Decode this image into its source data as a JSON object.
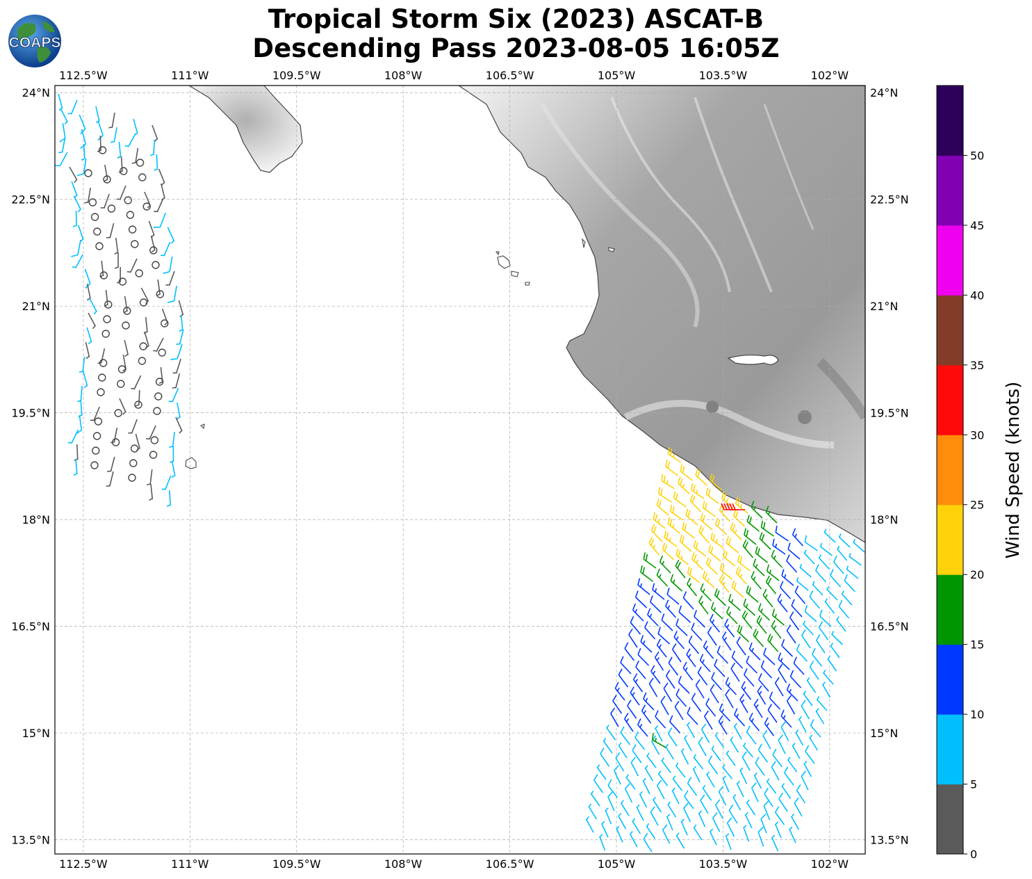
{
  "title": {
    "line1": "Tropical Storm Six (2023) ASCAT-B",
    "line2": "Descending Pass 2023-08-05 16:05Z"
  },
  "logo": {
    "text": "COAPS",
    "icon": "globe-logo"
  },
  "axes": {
    "lon_ticks": [
      "112.5°W",
      "111°W",
      "109.5°W",
      "108°W",
      "106.5°W",
      "105°W",
      "103.5°W",
      "102°W"
    ],
    "lat_ticks": [
      "24°N",
      "22.5°N",
      "21°N",
      "19.5°N",
      "18°N",
      "16.5°N",
      "15°N",
      "13.5°N"
    ],
    "lon_range": [
      -112.9,
      -101.5
    ],
    "lat_range": [
      13.3,
      24.1
    ]
  },
  "colorbar": {
    "label": "Wind Speed (knots)",
    "ticks": [
      "0",
      "5",
      "10",
      "15",
      "20",
      "25",
      "30",
      "35",
      "40",
      "45",
      "50"
    ],
    "bins": [
      {
        "min": 0,
        "max": 5,
        "color": "#5a5a5a"
      },
      {
        "min": 5,
        "max": 10,
        "color": "#00bfff"
      },
      {
        "min": 10,
        "max": 15,
        "color": "#0038ff"
      },
      {
        "min": 15,
        "max": 20,
        "color": "#009600"
      },
      {
        "min": 20,
        "max": 25,
        "color": "#ffd20a"
      },
      {
        "min": 25,
        "max": 30,
        "color": "#ff8c0a"
      },
      {
        "min": 30,
        "max": 35,
        "color": "#ff0a0a"
      },
      {
        "min": 35,
        "max": 40,
        "color": "#823c28"
      },
      {
        "min": 40,
        "max": 45,
        "color": "#f000f0"
      },
      {
        "min": 45,
        "max": 50,
        "color": "#8200b4"
      },
      {
        "min": 50,
        "max": 55,
        "color": "#2d005a"
      }
    ]
  }
}
